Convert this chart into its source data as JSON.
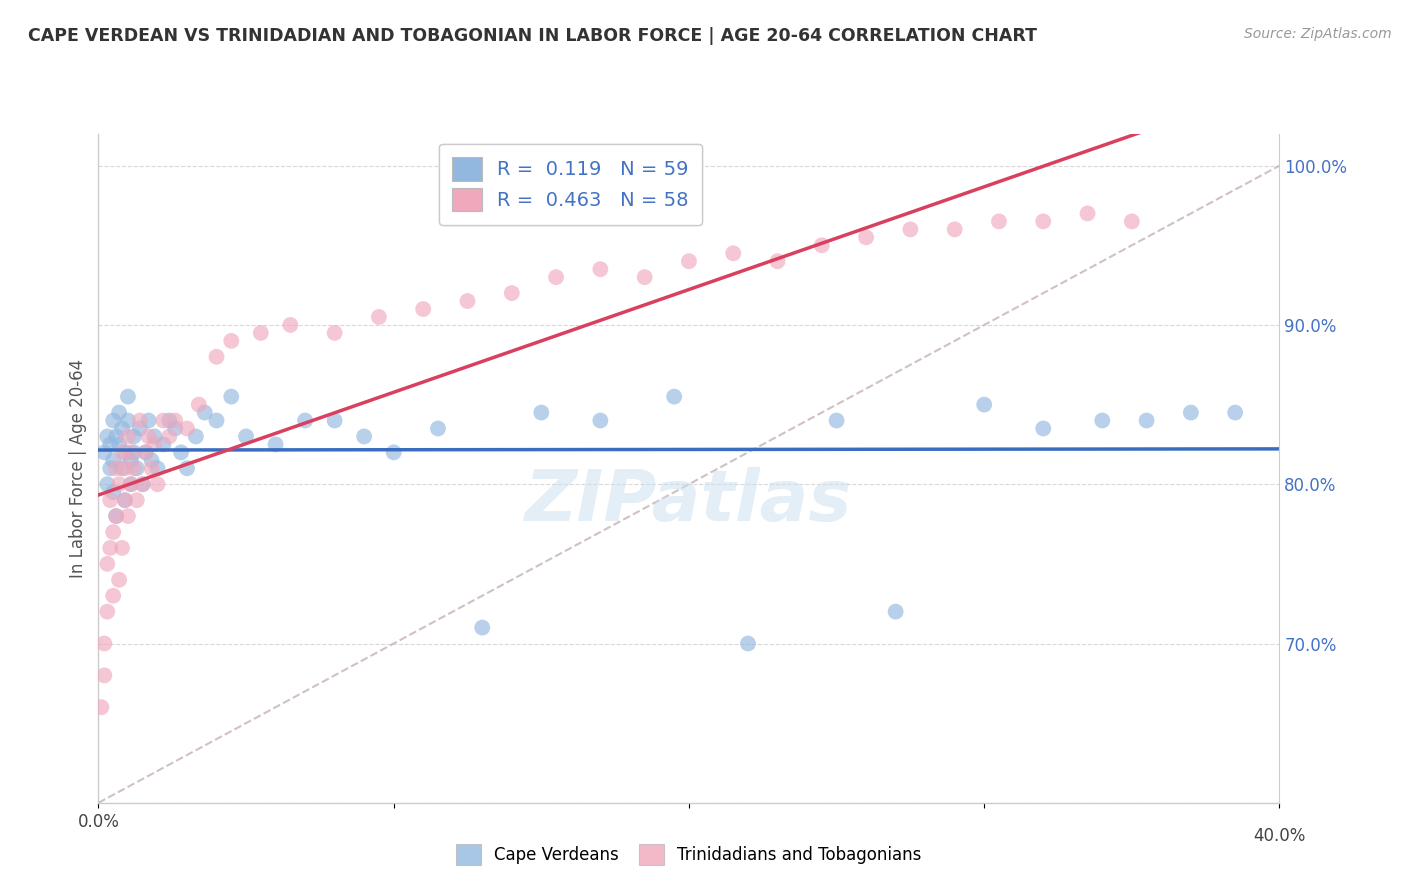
{
  "title": "CAPE VERDEAN VS TRINIDADIAN AND TOBAGONIAN IN LABOR FORCE | AGE 20-64 CORRELATION CHART",
  "source": "Source: ZipAtlas.com",
  "ylabel": "In Labor Force | Age 20-64",
  "xlim": [
    0.0,
    0.4
  ],
  "ylim": [
    0.6,
    1.02
  ],
  "watermark": "ZIPatlas",
  "blue_color": "#92b8e0",
  "pink_color": "#f0a8bc",
  "blue_line_color": "#3a6dbf",
  "pink_line_color": "#d94060",
  "dashed_line_color": "#ccbbbb",
  "legend_entries": [
    {
      "label": "R =  0.119   N = 59",
      "color": "#92b8e0"
    },
    {
      "label": "R =  0.463   N = 58",
      "color": "#f0a8bc"
    }
  ],
  "legend_bottom": [
    "Cape Verdeans",
    "Trinidadians and Tobagonians"
  ],
  "cape_verdean_x": [
    0.002,
    0.003,
    0.003,
    0.004,
    0.004,
    0.005,
    0.005,
    0.005,
    0.006,
    0.006,
    0.007,
    0.007,
    0.008,
    0.008,
    0.009,
    0.009,
    0.01,
    0.01,
    0.011,
    0.011,
    0.012,
    0.012,
    0.013,
    0.014,
    0.015,
    0.016,
    0.017,
    0.018,
    0.019,
    0.02,
    0.022,
    0.024,
    0.026,
    0.028,
    0.03,
    0.033,
    0.036,
    0.04,
    0.045,
    0.05,
    0.06,
    0.07,
    0.08,
    0.09,
    0.1,
    0.115,
    0.13,
    0.15,
    0.17,
    0.195,
    0.22,
    0.25,
    0.27,
    0.3,
    0.32,
    0.34,
    0.355,
    0.37,
    0.385
  ],
  "cape_verdean_y": [
    0.82,
    0.83,
    0.8,
    0.81,
    0.825,
    0.84,
    0.795,
    0.815,
    0.78,
    0.83,
    0.825,
    0.845,
    0.81,
    0.835,
    0.82,
    0.79,
    0.84,
    0.855,
    0.815,
    0.8,
    0.83,
    0.82,
    0.81,
    0.835,
    0.8,
    0.82,
    0.84,
    0.815,
    0.83,
    0.81,
    0.825,
    0.84,
    0.835,
    0.82,
    0.81,
    0.83,
    0.845,
    0.84,
    0.855,
    0.83,
    0.825,
    0.84,
    0.84,
    0.83,
    0.82,
    0.835,
    0.71,
    0.845,
    0.84,
    0.855,
    0.7,
    0.84,
    0.72,
    0.85,
    0.835,
    0.84,
    0.84,
    0.845,
    0.845
  ],
  "trinidadian_x": [
    0.001,
    0.002,
    0.002,
    0.003,
    0.003,
    0.004,
    0.004,
    0.005,
    0.005,
    0.006,
    0.006,
    0.007,
    0.007,
    0.008,
    0.008,
    0.009,
    0.009,
    0.01,
    0.01,
    0.011,
    0.011,
    0.012,
    0.013,
    0.014,
    0.015,
    0.016,
    0.017,
    0.018,
    0.019,
    0.02,
    0.022,
    0.024,
    0.026,
    0.03,
    0.034,
    0.04,
    0.045,
    0.055,
    0.065,
    0.08,
    0.095,
    0.11,
    0.125,
    0.14,
    0.155,
    0.17,
    0.185,
    0.2,
    0.215,
    0.23,
    0.245,
    0.26,
    0.275,
    0.29,
    0.305,
    0.32,
    0.335,
    0.35
  ],
  "trinidadian_y": [
    0.66,
    0.7,
    0.68,
    0.72,
    0.75,
    0.76,
    0.79,
    0.77,
    0.73,
    0.78,
    0.81,
    0.74,
    0.8,
    0.82,
    0.76,
    0.79,
    0.81,
    0.78,
    0.83,
    0.8,
    0.82,
    0.81,
    0.79,
    0.84,
    0.8,
    0.82,
    0.83,
    0.81,
    0.825,
    0.8,
    0.84,
    0.83,
    0.84,
    0.835,
    0.85,
    0.88,
    0.89,
    0.895,
    0.9,
    0.895,
    0.905,
    0.91,
    0.915,
    0.92,
    0.93,
    0.935,
    0.93,
    0.94,
    0.945,
    0.94,
    0.95,
    0.955,
    0.96,
    0.96,
    0.965,
    0.965,
    0.97,
    0.965
  ]
}
